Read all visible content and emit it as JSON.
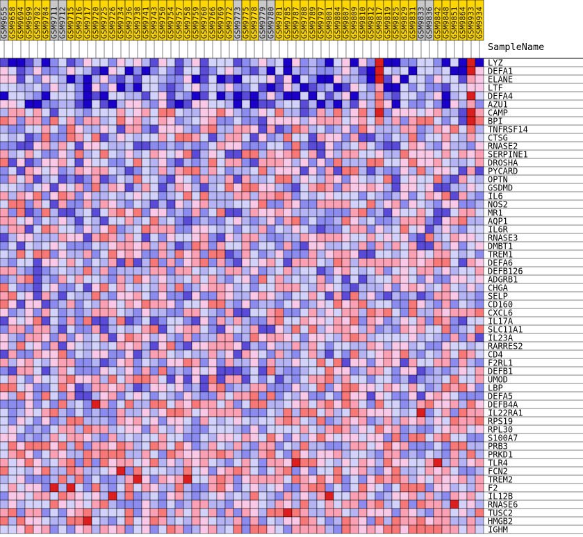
{
  "chart_data": {
    "type": "heatmap",
    "header_label": "SampleName",
    "columns": [
      "GSM9655",
      "GSM9658",
      "GSM9694",
      "GSM9699",
      "GSM9702",
      "GSM9704",
      "GSM9711",
      "GSM9712",
      "GSM9715",
      "GSM9716",
      "GSM9717",
      "GSM9720",
      "GSM9725",
      "GSM9726",
      "GSM9734",
      "GSM9736",
      "GSM9738",
      "GSM9741",
      "GSM9743",
      "GSM9750",
      "GSM9754",
      "GSM9757",
      "GSM9758",
      "GSM9759",
      "GSM9760",
      "GSM9766",
      "GSM9769",
      "GSM9772",
      "GSM9773",
      "GSM9775",
      "GSM9778",
      "GSM9779",
      "GSM9780",
      "GSM9781",
      "GSM9785",
      "GSM9787",
      "GSM9788",
      "GSM9789",
      "GSM9797",
      "GSM9801",
      "GSM9804",
      "GSM9807",
      "GSM9809",
      "GSM9810",
      "GSM9812",
      "GSM9817",
      "GSM9819",
      "GSM9825",
      "GSM9829",
      "GSM9831",
      "GSM9833",
      "GSM9836",
      "GSM9842",
      "GSM9848",
      "GSM9851",
      "GSM9864",
      "GSM9933",
      "GSM9934"
    ],
    "column_colors": [
      "#c8c8c8",
      "#ffd700",
      "#ffd700",
      "#ffd700",
      "#ffd700",
      "#ffd700",
      "#c8c8c8",
      "#c8c8c8",
      "#ffd700",
      "#ffd700",
      "#ffd700",
      "#ffd700",
      "#ffd700",
      "#ffd700",
      "#ffd700",
      "#ffd700",
      "#ffd700",
      "#ffd700",
      "#ffd700",
      "#ffd700",
      "#ffd700",
      "#ffd700",
      "#ffd700",
      "#ffd700",
      "#ffd700",
      "#ffd700",
      "#ffd700",
      "#ffd700",
      "#c8c8c8",
      "#ffd700",
      "#ffd700",
      "#c8c8c8",
      "#c8c8c8",
      "#ffd700",
      "#ffd700",
      "#ffd700",
      "#ffd700",
      "#ffd700",
      "#ffd700",
      "#ffd700",
      "#ffd700",
      "#ffd700",
      "#ffd700",
      "#ffd700",
      "#ffd700",
      "#ffd700",
      "#ffd700",
      "#ffd700",
      "#ffd700",
      "#ffd700",
      "#c8c8c8",
      "#c8c8c8",
      "#ffd700",
      "#ffd700",
      "#ffd700",
      "#ffd700",
      "#ffd700",
      "#ffd700"
    ],
    "rows": [
      "LYZ",
      "DEFA1",
      "ELANE",
      "LTF",
      "DEFA4",
      "AZU1",
      "CAMP",
      "BPI",
      "TNFRSF14",
      "CTSG",
      "RNASE2",
      "SERPINE1",
      "DROSHA",
      "PYCARD",
      "OPTN",
      "GSDMD",
      "IL6",
      "NOS2",
      "MR1",
      "AQP1",
      "IL6R",
      "RNASE3",
      "DMBT1",
      "TREM1",
      "DEFA6",
      "DEFB126",
      "ADGRB1",
      "CHGA",
      "SELP",
      "CD160",
      "CXCL6",
      "IL17A",
      "SLC11A1",
      "IL23A",
      "RARRES2",
      "CD4",
      "F2RL1",
      "DEFB1",
      "UMOD",
      "LBP",
      "DEFA5",
      "DEFB4A",
      "IL22RA1",
      "RPS19",
      "RPL30",
      "S100A7",
      "PRB3",
      "PRKD1",
      "TLR4",
      "FCN2",
      "TREM2",
      "F2",
      "IL12B",
      "RNASE6",
      "TUSC2",
      "HMGB2",
      "IGHM"
    ],
    "color_scale": [
      "#1a00c8",
      "#5a4cd8",
      "#8c8cf0",
      "#b4b4f4",
      "#d2d2fa",
      "#f8c8e6",
      "#fca0b4",
      "#f87878",
      "#dc1e1e"
    ],
    "value_range": [
      -4,
      4
    ]
  }
}
